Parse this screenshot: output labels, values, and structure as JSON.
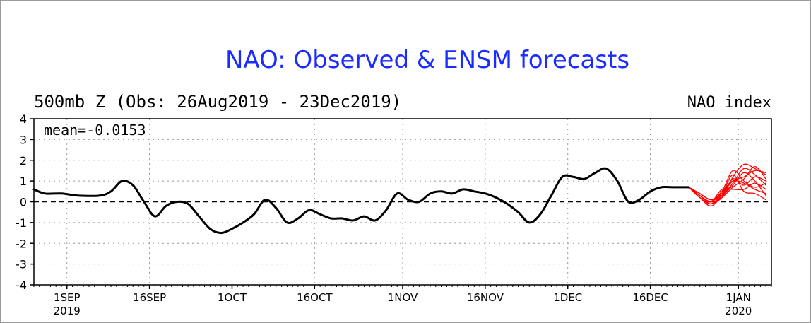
{
  "chart_data": {
    "type": "line",
    "title": "NAO: Observed & ENSM forecasts",
    "subtitle": "500mb Z (Obs: 26Aug2019 - 23Dec2019)",
    "right_label": "NAO index",
    "annotation": "mean=-0.0153",
    "ylim": [
      -4,
      4
    ],
    "yticks": [
      "4",
      "3",
      "2",
      "1",
      "0",
      "-1",
      "-2",
      "-3",
      "-4"
    ],
    "xlim": [
      "2019-08-26",
      "2020-01-07"
    ],
    "xticks": [
      {
        "date": "2019-09-01",
        "label": "1SEP",
        "sub": "2019"
      },
      {
        "date": "2019-09-16",
        "label": "16SEP",
        "sub": ""
      },
      {
        "date": "2019-10-01",
        "label": "1OCT",
        "sub": ""
      },
      {
        "date": "2019-10-16",
        "label": "16OCT",
        "sub": ""
      },
      {
        "date": "2019-11-01",
        "label": "1NOV",
        "sub": ""
      },
      {
        "date": "2019-11-16",
        "label": "16NOV",
        "sub": ""
      },
      {
        "date": "2019-12-01",
        "label": "1DEC",
        "sub": ""
      },
      {
        "date": "2019-12-16",
        "label": "16DEC",
        "sub": ""
      },
      {
        "date": "2020-01-01",
        "label": "1JAN",
        "sub": "2020"
      }
    ],
    "grid": true,
    "zero_line": "dashed",
    "observed": {
      "color": "#000000",
      "dates": [
        "2019-08-26",
        "2019-08-28",
        "2019-08-31",
        "2019-09-03",
        "2019-09-07",
        "2019-09-09",
        "2019-09-11",
        "2019-09-13",
        "2019-09-15",
        "2019-09-17",
        "2019-09-19",
        "2019-09-21",
        "2019-09-23",
        "2019-09-25",
        "2019-09-27",
        "2019-09-29",
        "2019-10-01",
        "2019-10-03",
        "2019-10-05",
        "2019-10-07",
        "2019-10-09",
        "2019-10-11",
        "2019-10-13",
        "2019-10-15",
        "2019-10-17",
        "2019-10-19",
        "2019-10-21",
        "2019-10-23",
        "2019-10-25",
        "2019-10-27",
        "2019-10-29",
        "2019-10-31",
        "2019-11-02",
        "2019-11-04",
        "2019-11-06",
        "2019-11-08",
        "2019-11-10",
        "2019-11-12",
        "2019-11-14",
        "2019-11-16",
        "2019-11-18",
        "2019-11-20",
        "2019-11-22",
        "2019-11-24",
        "2019-11-26",
        "2019-11-28",
        "2019-11-30",
        "2019-12-02",
        "2019-12-04",
        "2019-12-06",
        "2019-12-08",
        "2019-12-10",
        "2019-12-12",
        "2019-12-14",
        "2019-12-16",
        "2019-12-18",
        "2019-12-20",
        "2019-12-23"
      ],
      "values": [
        0.6,
        0.4,
        0.4,
        0.3,
        0.3,
        0.5,
        1.0,
        0.8,
        0.0,
        -0.7,
        -0.2,
        0.0,
        -0.1,
        -0.7,
        -1.3,
        -1.5,
        -1.3,
        -1.0,
        -0.6,
        0.1,
        -0.3,
        -1.0,
        -0.8,
        -0.4,
        -0.6,
        -0.8,
        -0.8,
        -0.9,
        -0.7,
        -0.9,
        -0.4,
        0.4,
        0.1,
        0.0,
        0.4,
        0.5,
        0.4,
        0.6,
        0.5,
        0.4,
        0.2,
        -0.1,
        -0.5,
        -1.0,
        -0.6,
        0.3,
        1.2,
        1.2,
        1.1,
        1.4,
        1.6,
        1.0,
        0.0,
        0.1,
        0.5,
        0.7,
        0.7,
        0.7
      ]
    },
    "forecast": {
      "color": "#ff0000",
      "dates": [
        "2019-12-23",
        "2019-12-25",
        "2019-12-27",
        "2019-12-29",
        "2019-12-31",
        "2020-01-02",
        "2020-01-04",
        "2020-01-06"
      ],
      "members": [
        [
          0.7,
          0.3,
          0.0,
          0.2,
          1.2,
          1.8,
          1.6,
          1.3
        ],
        [
          0.7,
          0.2,
          -0.1,
          0.4,
          1.0,
          1.2,
          1.5,
          1.4
        ],
        [
          0.7,
          0.3,
          0.0,
          0.5,
          1.5,
          1.0,
          0.7,
          0.9
        ],
        [
          0.7,
          0.4,
          0.1,
          0.3,
          0.8,
          1.4,
          1.0,
          0.3
        ],
        [
          0.7,
          0.2,
          -0.2,
          0.3,
          1.1,
          0.8,
          1.2,
          1.0
        ],
        [
          0.7,
          0.3,
          0.0,
          0.6,
          0.6,
          0.6,
          0.9,
          0.6
        ],
        [
          0.7,
          0.3,
          -0.1,
          0.3,
          0.9,
          1.6,
          1.3,
          0.8
        ],
        [
          0.7,
          0.4,
          0.1,
          0.4,
          1.3,
          0.5,
          0.4,
          0.1
        ],
        [
          0.7,
          0.2,
          -0.1,
          0.2,
          0.7,
          1.1,
          1.7,
          1.1
        ],
        [
          0.7,
          0.3,
          0.0,
          0.5,
          1.0,
          0.9,
          0.6,
          0.4
        ]
      ]
    }
  }
}
